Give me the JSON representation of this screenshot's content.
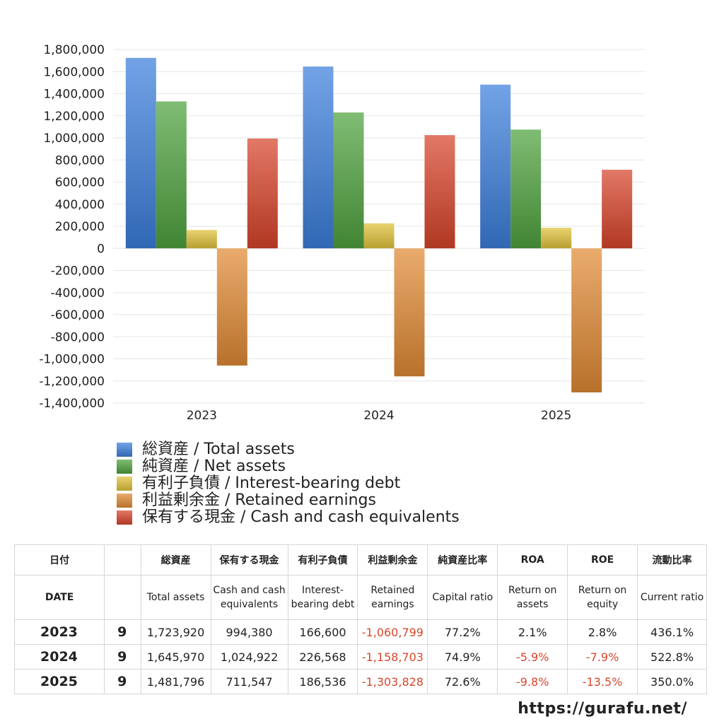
{
  "chart_data": {
    "type": "bar",
    "categories": [
      "2023",
      "2024",
      "2025"
    ],
    "series": [
      {
        "name": "総資産 / Total assets",
        "color": "#3c7fdc",
        "values": [
          1723920,
          1645970,
          1481796
        ]
      },
      {
        "name": "純資産 / Net assets",
        "color": "#4fa23e",
        "values": [
          1330000,
          1230000,
          1075000
        ]
      },
      {
        "name": "有利子負債 / Interest-bearing debt",
        "color": "#e0c23a",
        "values": [
          166600,
          226568,
          186536
        ]
      },
      {
        "name": "利益剰余金 / Retained earnings",
        "color": "#e08a34",
        "values": [
          -1060799,
          -1158703,
          -1303828
        ]
      },
      {
        "name": "保有する現金 /  Cash and cash equivalents",
        "color": "#d7442a",
        "values": [
          994380,
          1024922,
          711547
        ]
      }
    ],
    "ylim": [
      -1400000,
      1800000
    ],
    "yticks": [
      1800000,
      1600000,
      1400000,
      1200000,
      1000000,
      800000,
      600000,
      400000,
      200000,
      0,
      -200000,
      -400000,
      -600000,
      -800000,
      -1000000,
      -1200000,
      -1400000
    ],
    "ytick_labels": [
      "1,800,000",
      "1,600,000",
      "1,400,000",
      "1,200,000",
      "1,000,000",
      "800,000",
      "600,000",
      "400,000",
      "200,000",
      "0",
      "-200,000",
      "-400,000",
      "-600,000",
      "-800,000",
      "-1,000,000",
      "-1,200,000",
      "-1,400,000"
    ],
    "grid": true,
    "legend_position": "bottom",
    "title": "",
    "xlabel": "",
    "ylabel": ""
  },
  "table": {
    "header_jp": [
      "日付",
      "",
      "総資産",
      "保有する現金",
      "有利子負債",
      "利益剰余金",
      "純資産比率",
      "ROA",
      "ROE",
      "流動比率"
    ],
    "header_en": [
      "DATE",
      "",
      "Total assets",
      "Cash and cash equivalents",
      "Interest-bearing debt",
      "Retained earnings",
      "Capital ratio",
      "Return on assets",
      "Return on equity",
      "Current ratio"
    ],
    "rows": [
      {
        "year": "2023",
        "month": "9",
        "total_assets": "1,723,920",
        "cash": "994,380",
        "debt": "166,600",
        "retained": "-1,060,799",
        "capital_ratio": "77.2%",
        "roa": "2.1%",
        "roe": "2.8%",
        "current_ratio": "436.1%"
      },
      {
        "year": "2024",
        "month": "9",
        "total_assets": "1,645,970",
        "cash": "1,024,922",
        "debt": "226,568",
        "retained": "-1,158,703",
        "capital_ratio": "74.9%",
        "roa": "-5.9%",
        "roe": "-7.9%",
        "current_ratio": "522.8%"
      },
      {
        "year": "2025",
        "month": "9",
        "total_assets": "1,481,796",
        "cash": "711,547",
        "debt": "186,536",
        "retained": "-1,303,828",
        "capital_ratio": "72.6%",
        "roa": "-9.8%",
        "roe": "-13.5%",
        "current_ratio": "350.0%"
      }
    ]
  },
  "footer": {
    "url": "https://gurafu.net/"
  }
}
